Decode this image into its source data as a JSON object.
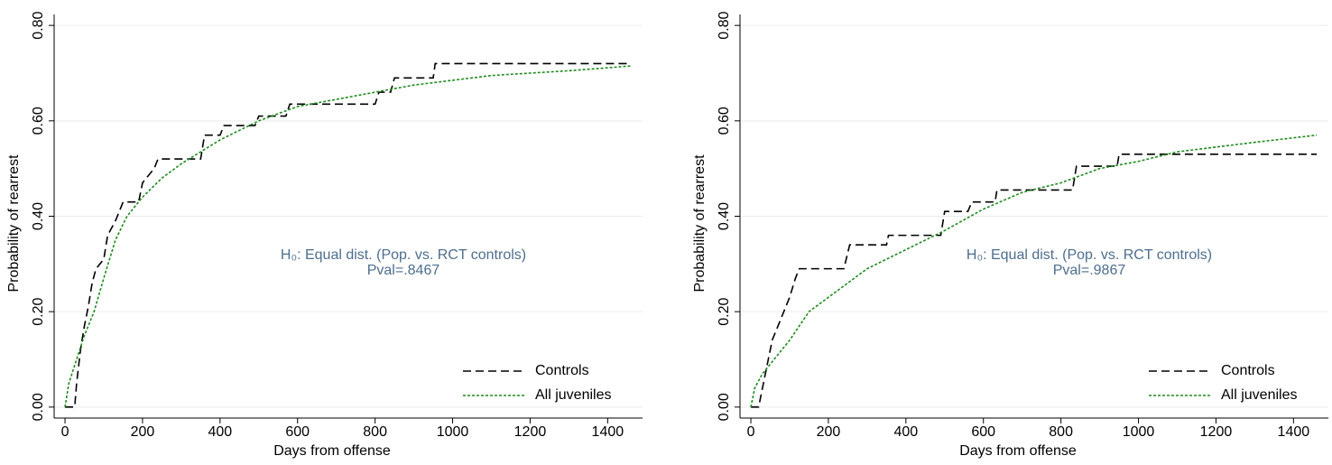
{
  "chart_data": [
    {
      "type": "line",
      "xlabel": "Days from offense",
      "ylabel": "Probability of rearrest",
      "annotation": [
        "H₀: Equal dist. (Pop. vs. RCT controls)",
        "Pval=.8467"
      ],
      "xlim": [
        -28,
        1490
      ],
      "ylim": [
        -0.023,
        0.823
      ],
      "xticks": [
        0,
        200,
        400,
        600,
        800,
        1000,
        1200,
        1400
      ],
      "yticks": [
        {
          "value": 0,
          "label": "0.00"
        },
        {
          "value": 0.2,
          "label": "0.20"
        },
        {
          "value": 0.4,
          "label": "0.40"
        },
        {
          "value": 0.6,
          "label": "0.60"
        },
        {
          "value": 0.8,
          "label": "0.80"
        }
      ],
      "grid": true,
      "legend": "lower right",
      "series": [
        {
          "name": "Controls",
          "color": "#000000",
          "style": "dashed",
          "x": [
            0,
            25,
            30,
            40,
            50,
            60,
            70,
            80,
            100,
            110,
            130,
            140,
            150,
            190,
            200,
            230,
            240,
            350,
            360,
            400,
            410,
            490,
            500,
            570,
            580,
            800,
            810,
            840,
            850,
            950,
            955,
            1460
          ],
          "values": [
            0,
            0,
            0.05,
            0.12,
            0.17,
            0.21,
            0.26,
            0.29,
            0.31,
            0.36,
            0.39,
            0.41,
            0.43,
            0.43,
            0.47,
            0.5,
            0.52,
            0.52,
            0.57,
            0.57,
            0.59,
            0.59,
            0.61,
            0.61,
            0.635,
            0.635,
            0.66,
            0.66,
            0.69,
            0.69,
            0.72,
            0.72
          ]
        },
        {
          "name": "All juveniles",
          "color": "#1f8a1f",
          "style": "dotted",
          "x": [
            0,
            10,
            30,
            50,
            75,
            100,
            130,
            160,
            200,
            250,
            300,
            400,
            500,
            600,
            700,
            800,
            900,
            1000,
            1100,
            1200,
            1300,
            1460
          ],
          "values": [
            0,
            0.05,
            0.1,
            0.15,
            0.2,
            0.27,
            0.35,
            0.4,
            0.44,
            0.48,
            0.51,
            0.56,
            0.6,
            0.63,
            0.645,
            0.66,
            0.675,
            0.685,
            0.695,
            0.7,
            0.705,
            0.715
          ]
        }
      ]
    },
    {
      "type": "line",
      "xlabel": "Days from offense",
      "ylabel": "Probability of rearrest",
      "annotation": [
        "H₀: Equal dist. (Pop. vs. RCT controls)",
        "Pval=.9867"
      ],
      "xlim": [
        -28,
        1490
      ],
      "ylim": [
        -0.023,
        0.823
      ],
      "xticks": [
        0,
        200,
        400,
        600,
        800,
        1000,
        1200,
        1400
      ],
      "yticks": [
        {
          "value": 0,
          "label": "0.00"
        },
        {
          "value": 0.2,
          "label": "0.20"
        },
        {
          "value": 0.4,
          "label": "0.40"
        },
        {
          "value": 0.6,
          "label": "0.60"
        },
        {
          "value": 0.8,
          "label": "0.80"
        }
      ],
      "grid": true,
      "legend": "lower right",
      "series": [
        {
          "name": "Controls",
          "color": "#000000",
          "style": "dashed",
          "x": [
            0,
            20,
            25,
            35,
            45,
            55,
            70,
            85,
            100,
            115,
            125,
            240,
            255,
            350,
            355,
            490,
            500,
            560,
            570,
            630,
            635,
            830,
            840,
            945,
            950,
            1460
          ],
          "values": [
            0,
            0,
            0.02,
            0.06,
            0.1,
            0.14,
            0.17,
            0.2,
            0.23,
            0.27,
            0.29,
            0.29,
            0.34,
            0.34,
            0.36,
            0.36,
            0.41,
            0.41,
            0.43,
            0.43,
            0.455,
            0.455,
            0.505,
            0.505,
            0.53,
            0.53
          ]
        },
        {
          "name": "All juveniles",
          "color": "#1f8a1f",
          "style": "dotted",
          "x": [
            0,
            10,
            30,
            60,
            100,
            150,
            200,
            300,
            400,
            500,
            600,
            700,
            800,
            900,
            1000,
            1100,
            1200,
            1300,
            1460
          ],
          "values": [
            0,
            0.04,
            0.07,
            0.1,
            0.14,
            0.2,
            0.23,
            0.29,
            0.33,
            0.37,
            0.415,
            0.45,
            0.47,
            0.5,
            0.515,
            0.535,
            0.545,
            0.555,
            0.57
          ]
        }
      ]
    }
  ]
}
